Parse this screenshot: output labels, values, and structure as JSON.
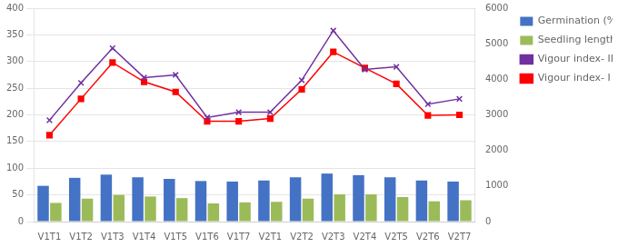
{
  "chart_data": {
    "type": "bar",
    "categories": [
      "V1T1",
      "V1T2",
      "V1T3",
      "V1T4",
      "V1T5",
      "V1T6",
      "V1T7",
      "V2T1",
      "V2T2",
      "V2T3",
      "V2T4",
      "V2T5",
      "V2T6",
      "V2T7"
    ],
    "series": [
      {
        "name": "Germination (%)",
        "type": "bar",
        "color": "#4472c4",
        "values": [
          67,
          82,
          88,
          83,
          80,
          76,
          75,
          77,
          83,
          90,
          87,
          83,
          77,
          75
        ]
      },
      {
        "name": "Seedling length (mm)",
        "type": "bar",
        "color": "#9bbb59",
        "values": [
          35,
          43,
          50,
          47,
          44,
          34,
          36,
          37,
          43,
          51,
          51,
          46,
          38,
          40
        ]
      },
      {
        "name": "Vigour index- II",
        "type": "line",
        "axis": "y2",
        "color": "#7030a0",
        "marker": "x",
        "values": [
          2850,
          3900,
          4875,
          4050,
          4125,
          2925,
          3075,
          3075,
          3975,
          5370,
          4275,
          4350,
          3300,
          3450
        ]
      },
      {
        "name": "Vigour index- I",
        "type": "line",
        "axis": "y2",
        "color": "#ff0000",
        "marker": "square",
        "values": [
          2430,
          3450,
          4470,
          3930,
          3645,
          2820,
          2820,
          2895,
          3720,
          4770,
          4320,
          3870,
          2985,
          3000
        ]
      }
    ],
    "ylim": [
      0,
      400
    ],
    "yticks": [
      0,
      50,
      100,
      150,
      200,
      250,
      300,
      350,
      400
    ],
    "y2lim": [
      0,
      6000
    ],
    "y2ticks": [
      0,
      1000,
      2000,
      3000,
      4000,
      5000,
      6000
    ],
    "grid": true,
    "legend": "right"
  }
}
